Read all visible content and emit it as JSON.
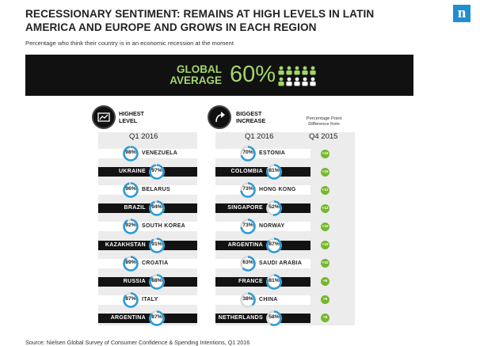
{
  "header": {
    "title": "RECESSIONARY SENTIMENT: REMAINS AT HIGH LEVELS IN LATIN AMERICA AND EUROPE AND GROWS IN EACH REGION",
    "subtitle": "Percentage who think their country is in an economic recession at the moment",
    "logo_letter": "n"
  },
  "banner": {
    "label_line1": "GLOBAL",
    "label_line2": "AVERAGE",
    "value": "60%",
    "people_icons": 10,
    "people_highlighted": 6
  },
  "colors": {
    "accent_green": "#a4d56a",
    "ring_blue": "#2e9bd6",
    "ring_track": "#d9d9d9",
    "badge_green": "#76b82a",
    "panel_bg": "#ececec",
    "dark": "#121212"
  },
  "panels": {
    "highest": {
      "label_line1": "HIGHEST",
      "label_line2": "LEVEL",
      "quarter": "Q1 2016",
      "icon": "trend-chart-icon"
    },
    "increase": {
      "label_line1": "BIGGEST",
      "label_line2": "INCREASE",
      "quarter": "Q1 2016",
      "icon": "up-arrow-icon",
      "diff_note": "Percentage Point Difference from",
      "diff_quarter": "Q4 2015"
    }
  },
  "chart_data": [
    {
      "type": "bar",
      "title": "HIGHEST LEVEL",
      "xlabel": "Q1 2016",
      "categories": [
        "VENEZUELA",
        "UKRAINE",
        "BELARUS",
        "BRAZIL",
        "SOUTH KOREA",
        "KAZAKHSTAN",
        "CROATIA",
        "RUSSIA",
        "ITALY",
        "ARGENTINA"
      ],
      "values": [
        98,
        97,
        96,
        94,
        92,
        91,
        89,
        88,
        87,
        87
      ],
      "labels": [
        "98%",
        "97%",
        "96%",
        "94%",
        "92%",
        "91%",
        "89%",
        "88%",
        "87%",
        "87%"
      ],
      "ylim": [
        0,
        100
      ]
    },
    {
      "type": "bar",
      "title": "BIGGEST INCREASE",
      "xlabel": "Q1 2016",
      "categories": [
        "ESTONIA",
        "COLOMBIA",
        "HONG KONG",
        "SINGAPORE",
        "NORWAY",
        "ARGENTINA",
        "SAUDI ARABIA",
        "FRANCE",
        "CHINA",
        "NETHERLANDS"
      ],
      "values": [
        70,
        81,
        73,
        52,
        73,
        87,
        63,
        81,
        38,
        58
      ],
      "labels": [
        "70%",
        "81%",
        "73%",
        "52%",
        "73%",
        "87%",
        "63%",
        "81%",
        "38%",
        "58%"
      ],
      "diff_values": [
        24,
        15,
        12,
        12,
        10,
        10,
        10,
        9,
        9,
        9
      ],
      "diff_labels": [
        "+24",
        "+15",
        "+12",
        "+12",
        "+10",
        "+10",
        "+10",
        "+9",
        "+9",
        "+9"
      ],
      "ylim": [
        0,
        100
      ]
    }
  ],
  "footer": {
    "source": "Source: Nielsen Global Survey of Consumer Confidence & Spending Intentions, Q1 2016"
  }
}
